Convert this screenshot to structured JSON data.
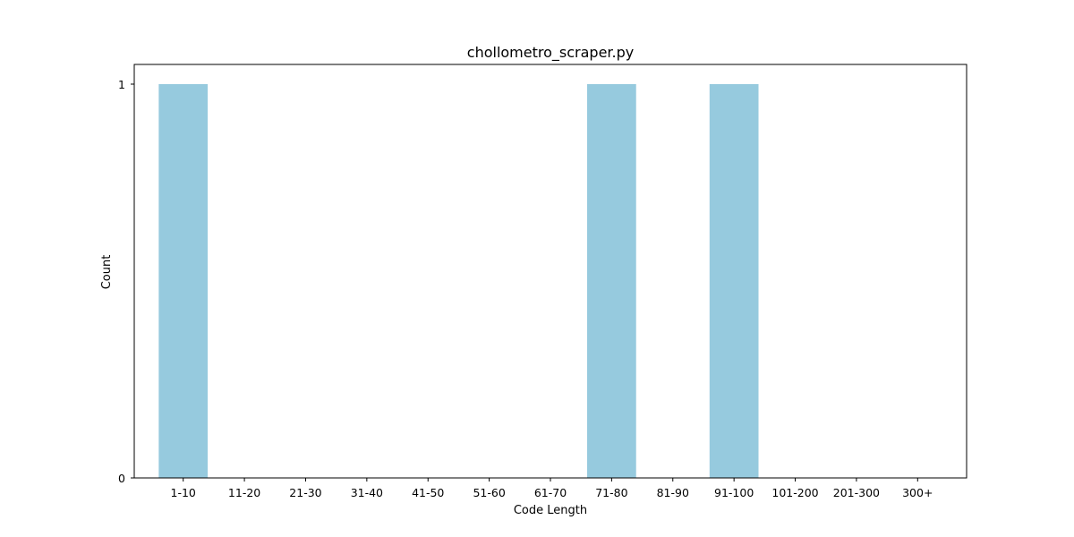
{
  "chart_data": {
    "type": "bar",
    "title": "chollometro_scraper.py",
    "xlabel": "Code Length",
    "ylabel": "Count",
    "categories": [
      "1-10",
      "11-20",
      "21-30",
      "31-40",
      "41-50",
      "51-60",
      "61-70",
      "71-80",
      "81-90",
      "91-100",
      "101-200",
      "201-300",
      "300+"
    ],
    "values": [
      1,
      0,
      0,
      0,
      0,
      0,
      0,
      1,
      0,
      1,
      0,
      0,
      0
    ],
    "ylim": [
      0,
      1.05
    ],
    "yticks": [
      0,
      1
    ],
    "grid": false,
    "bar_color": "#96cade"
  }
}
